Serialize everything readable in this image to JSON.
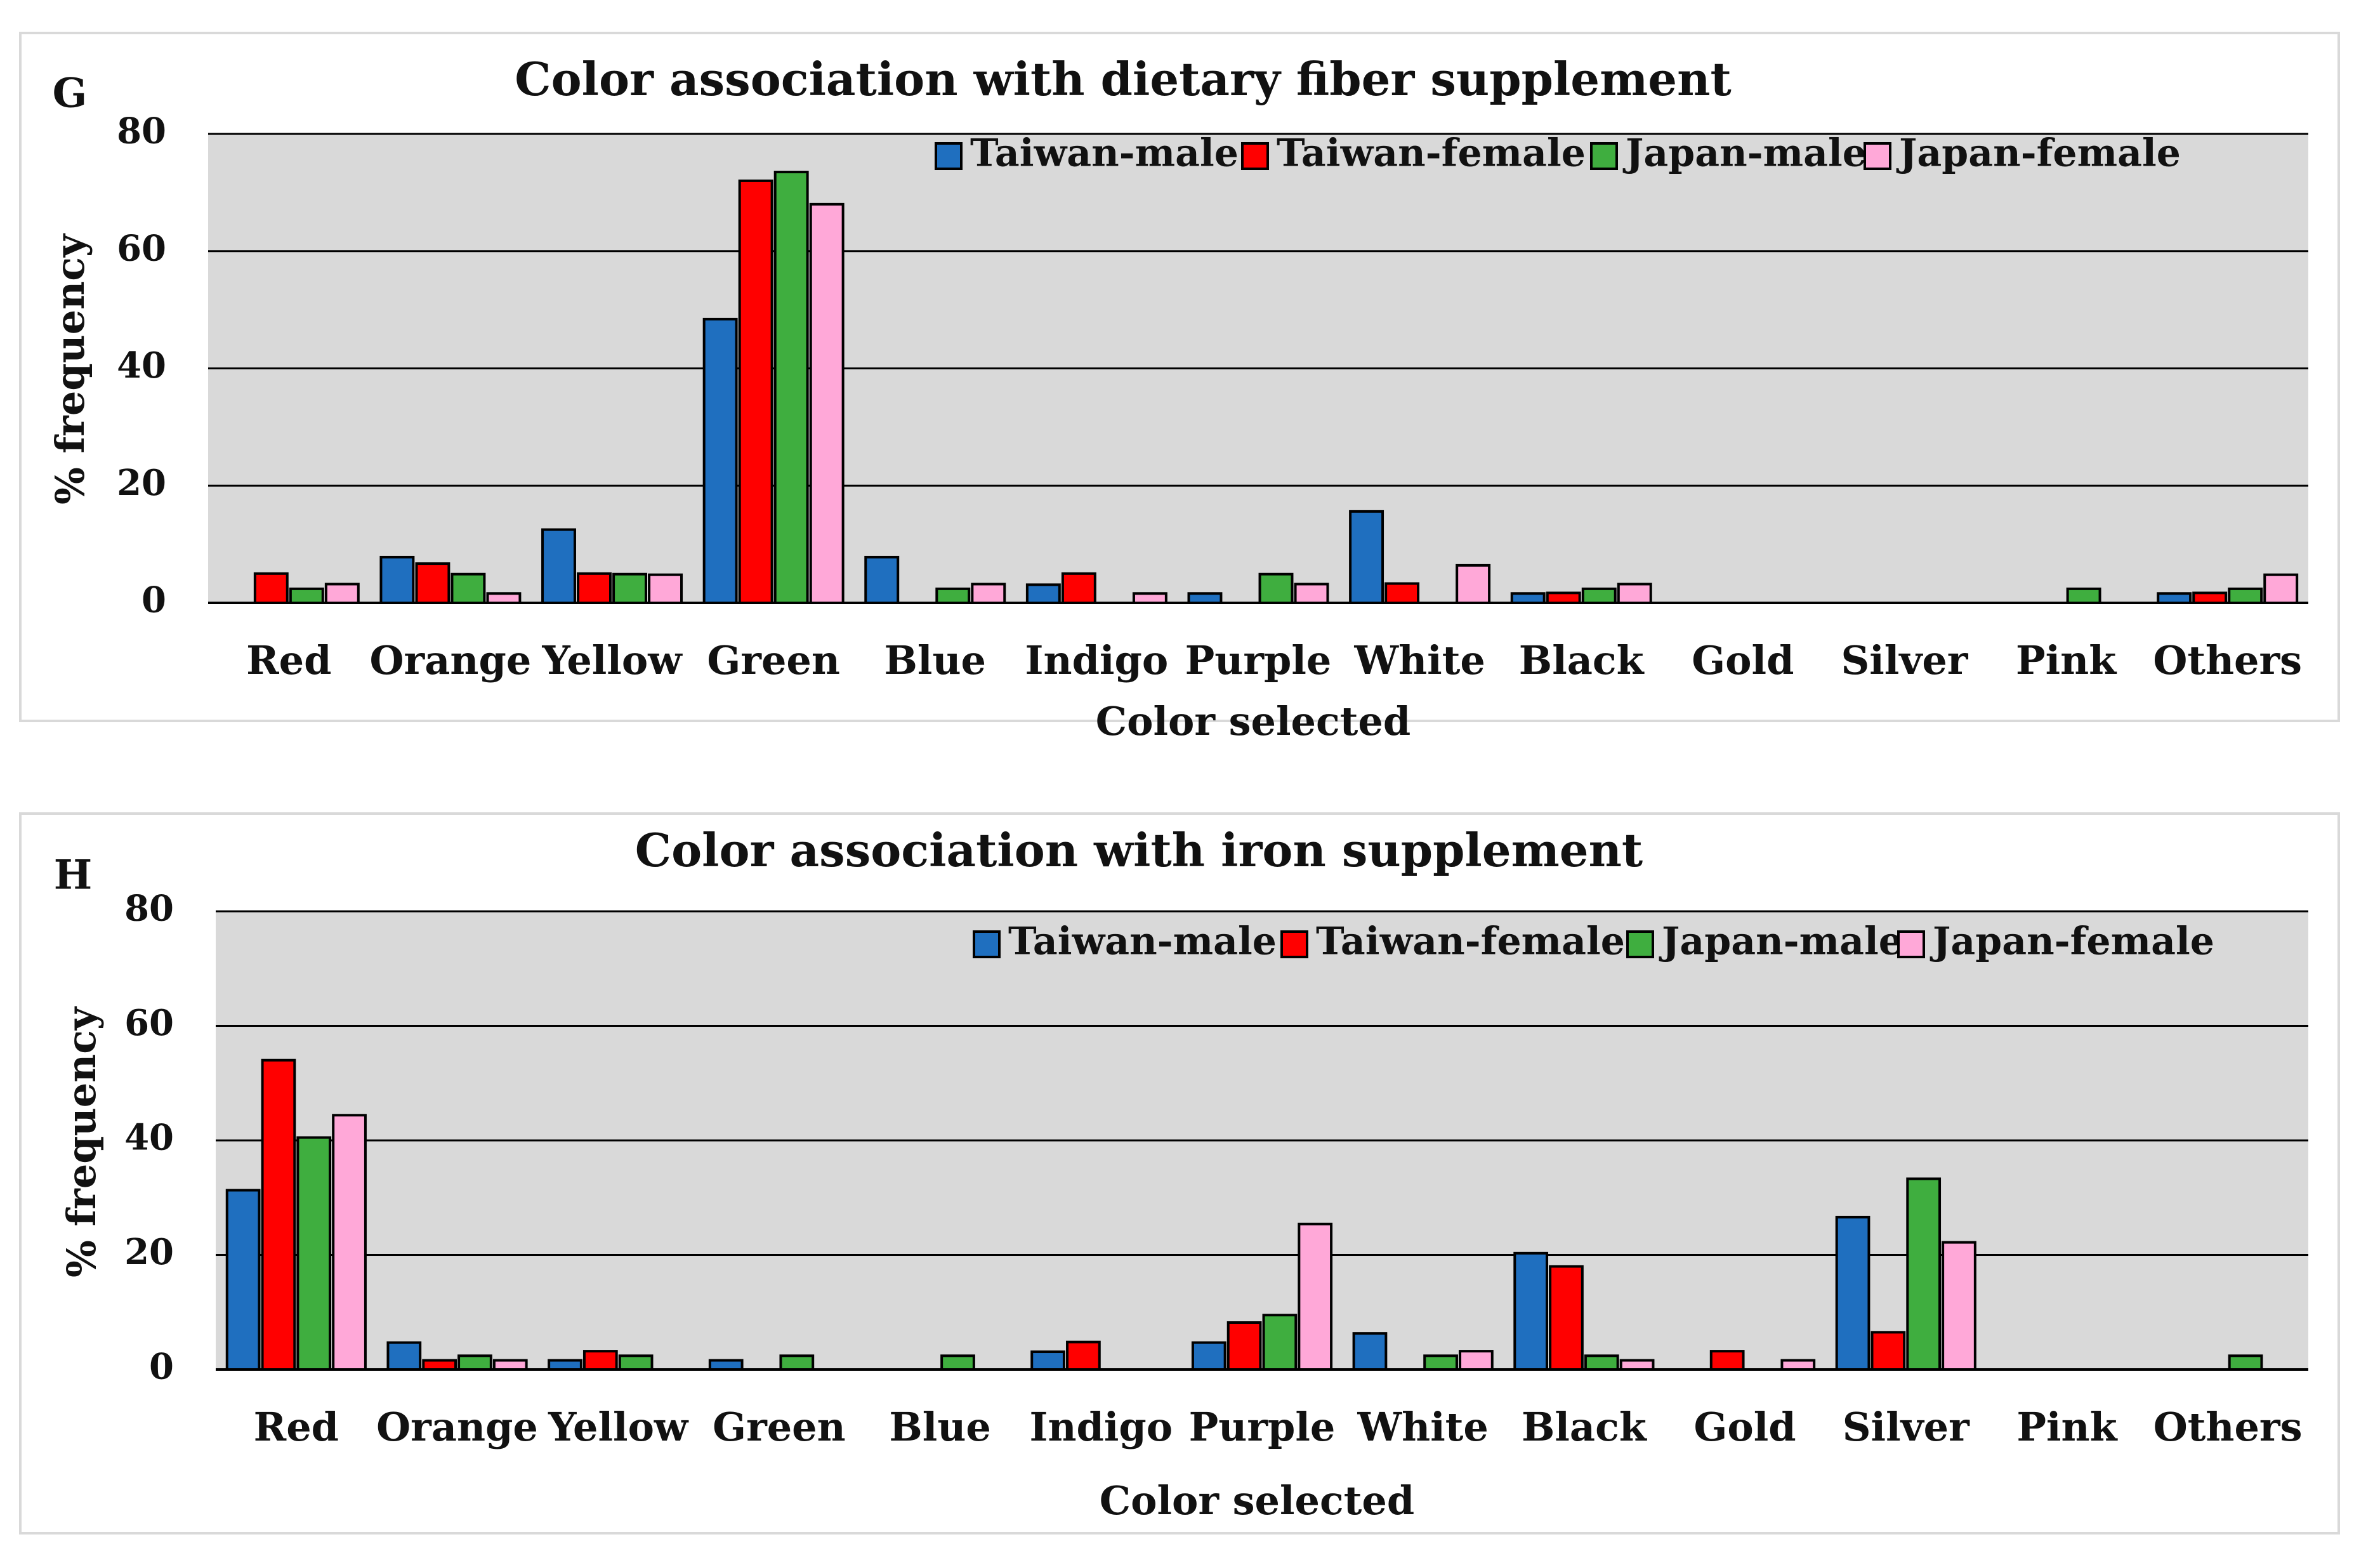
{
  "series_colors": {
    "Taiwan-male": "#1f6fbf",
    "Taiwan-female": "#ff0000",
    "Japan-male": "#3fae3f",
    "Japan-female": "#ffa8d8"
  },
  "chart_data": [
    {
      "type": "bar",
      "panel_label": "G",
      "title": "Color association with dietary fiber supplement",
      "xlabel": "Color selected",
      "ylabel": "% frequency",
      "ylim": [
        0,
        80
      ],
      "yticks": [
        "0",
        "20",
        "40",
        "60",
        "80"
      ],
      "grid": true,
      "legend_position": "top-right",
      "categories": [
        "Red",
        "Orange",
        "Yellow",
        "Green",
        "Blue",
        "Indigo",
        "Purple",
        "White",
        "Black",
        "Gold",
        "Silver",
        "Pink",
        "Others"
      ],
      "series": [
        {
          "name": "Taiwan-male",
          "values": [
            0,
            7.8,
            12.5,
            48.4,
            7.8,
            3.1,
            1.6,
            15.6,
            1.6,
            0,
            0,
            0,
            1.6
          ]
        },
        {
          "name": "Taiwan-female",
          "values": [
            5.0,
            6.7,
            5.0,
            72.0,
            0,
            5.0,
            0,
            3.3,
            1.7,
            0,
            0,
            0,
            1.7
          ]
        },
        {
          "name": "Japan-male",
          "values": [
            2.4,
            4.9,
            4.9,
            73.5,
            2.4,
            0,
            4.9,
            0,
            2.4,
            0,
            0,
            2.4,
            2.4
          ]
        },
        {
          "name": "Japan-female",
          "values": [
            3.2,
            1.6,
            4.8,
            68.0,
            3.2,
            1.6,
            3.2,
            6.4,
            3.2,
            0,
            0,
            0,
            4.8
          ]
        }
      ]
    },
    {
      "type": "bar",
      "panel_label": "H",
      "title": "Color association with iron supplement",
      "xlabel": "Color selected",
      "ylabel": "% frequency",
      "ylim": [
        0,
        80
      ],
      "yticks": [
        "0",
        "20",
        "40",
        "60",
        "80"
      ],
      "grid": true,
      "legend_position": "top-right",
      "categories": [
        "Red",
        "Orange",
        "Yellow",
        "Green",
        "Blue",
        "Indigo",
        "Purple",
        "White",
        "Black",
        "Gold",
        "Silver",
        "Pink",
        "Others"
      ],
      "series": [
        {
          "name": "Taiwan-male",
          "values": [
            31.3,
            4.7,
            1.6,
            1.6,
            0,
            3.1,
            4.7,
            6.3,
            20.3,
            0,
            26.6,
            0,
            0
          ]
        },
        {
          "name": "Taiwan-female",
          "values": [
            54.0,
            1.6,
            3.2,
            0,
            0,
            4.8,
            8.2,
            0,
            18.0,
            3.2,
            6.5,
            0,
            0
          ]
        },
        {
          "name": "Japan-male",
          "values": [
            40.5,
            2.4,
            2.4,
            2.4,
            2.4,
            0,
            9.5,
            2.4,
            2.4,
            0,
            33.3,
            0,
            2.4
          ]
        },
        {
          "name": "Japan-female",
          "values": [
            44.4,
            1.6,
            0,
            0,
            0,
            0,
            25.4,
            3.2,
            1.6,
            1.6,
            22.2,
            0,
            0
          ]
        }
      ]
    }
  ]
}
